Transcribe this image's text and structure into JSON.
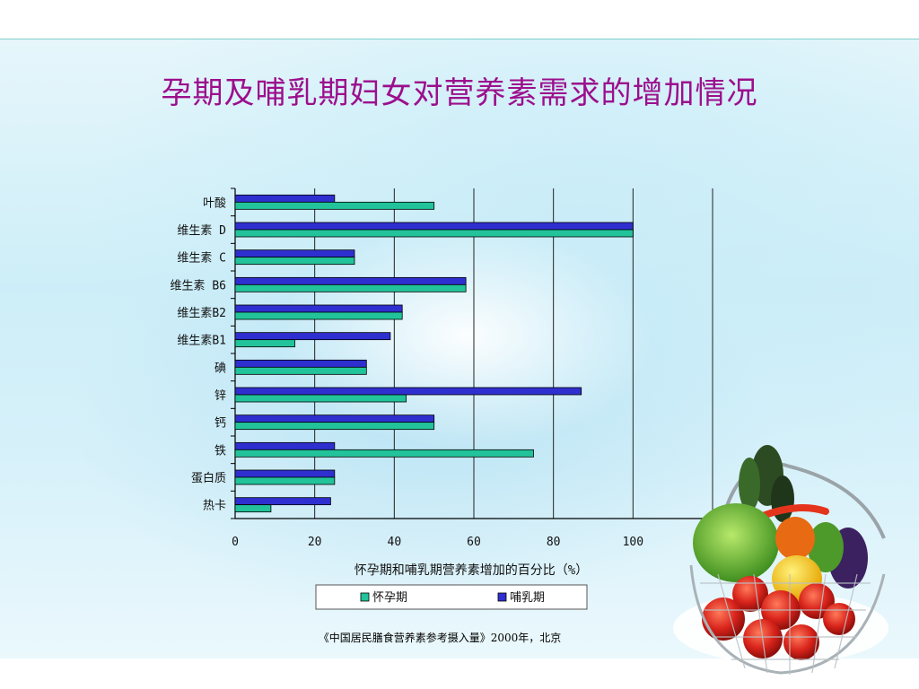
{
  "slide": {
    "title": "孕期及哺乳期妇女对营养素需求的增加情况",
    "source": "《中国居民膳食营养素参考摄入量》2000年，北京"
  },
  "chart_data": {
    "type": "bar",
    "orientation": "horizontal",
    "categories": [
      "叶酸",
      "维生素 D",
      "维生素 C",
      "维生素 B6",
      "维生素B2",
      "维生素B1",
      "碘",
      "锌",
      "钙",
      "铁",
      "蛋白质",
      "热卡"
    ],
    "series": [
      {
        "name": "怀孕期",
        "color": "#22c39a",
        "values": [
          50,
          100,
          30,
          58,
          42,
          15,
          33,
          43,
          50,
          75,
          25,
          9
        ]
      },
      {
        "name": "哺乳期",
        "color": "#2f2fd0",
        "values": [
          25,
          100,
          30,
          58,
          42,
          39,
          33,
          87,
          50,
          25,
          25,
          24
        ]
      }
    ],
    "xlabel": "怀孕期和哺乳期营养素增加的百分比（%）",
    "xticks": [
      "0",
      "20",
      "40",
      "60",
      "80",
      "100"
    ],
    "xlim": [
      0,
      120
    ],
    "grid": true,
    "legend": "bottom"
  }
}
